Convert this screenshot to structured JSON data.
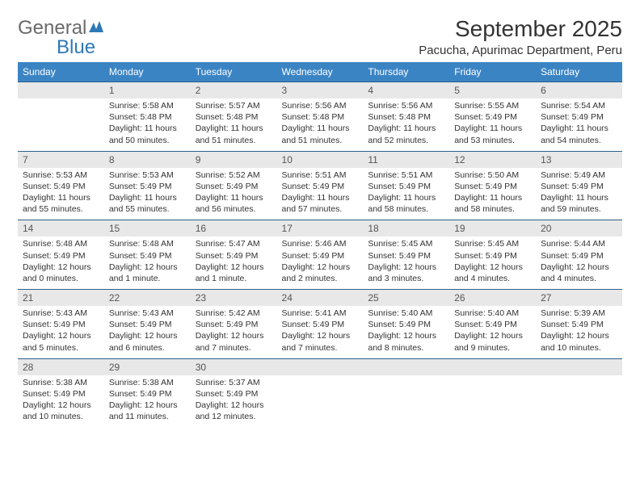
{
  "brand": {
    "text1": "General",
    "text2": "Blue",
    "icon_color": "#2e79b6"
  },
  "title": "September 2025",
  "location": "Pacucha, Apurimac Department, Peru",
  "colors": {
    "header_bg": "#3b84c4",
    "header_text": "#ffffff",
    "daynum_bg": "#e8e8e8",
    "cell_bg": "#ffffff",
    "border": "#2e5f8a"
  },
  "columns": [
    "Sunday",
    "Monday",
    "Tuesday",
    "Wednesday",
    "Thursday",
    "Friday",
    "Saturday"
  ],
  "weeks": [
    {
      "days": [
        {
          "num": "",
          "sunrise": "",
          "sunset": "",
          "daylight": ""
        },
        {
          "num": "1",
          "sunrise": "Sunrise: 5:58 AM",
          "sunset": "Sunset: 5:48 PM",
          "daylight": "Daylight: 11 hours and 50 minutes."
        },
        {
          "num": "2",
          "sunrise": "Sunrise: 5:57 AM",
          "sunset": "Sunset: 5:48 PM",
          "daylight": "Daylight: 11 hours and 51 minutes."
        },
        {
          "num": "3",
          "sunrise": "Sunrise: 5:56 AM",
          "sunset": "Sunset: 5:48 PM",
          "daylight": "Daylight: 11 hours and 51 minutes."
        },
        {
          "num": "4",
          "sunrise": "Sunrise: 5:56 AM",
          "sunset": "Sunset: 5:48 PM",
          "daylight": "Daylight: 11 hours and 52 minutes."
        },
        {
          "num": "5",
          "sunrise": "Sunrise: 5:55 AM",
          "sunset": "Sunset: 5:49 PM",
          "daylight": "Daylight: 11 hours and 53 minutes."
        },
        {
          "num": "6",
          "sunrise": "Sunrise: 5:54 AM",
          "sunset": "Sunset: 5:49 PM",
          "daylight": "Daylight: 11 hours and 54 minutes."
        }
      ]
    },
    {
      "days": [
        {
          "num": "7",
          "sunrise": "Sunrise: 5:53 AM",
          "sunset": "Sunset: 5:49 PM",
          "daylight": "Daylight: 11 hours and 55 minutes."
        },
        {
          "num": "8",
          "sunrise": "Sunrise: 5:53 AM",
          "sunset": "Sunset: 5:49 PM",
          "daylight": "Daylight: 11 hours and 55 minutes."
        },
        {
          "num": "9",
          "sunrise": "Sunrise: 5:52 AM",
          "sunset": "Sunset: 5:49 PM",
          "daylight": "Daylight: 11 hours and 56 minutes."
        },
        {
          "num": "10",
          "sunrise": "Sunrise: 5:51 AM",
          "sunset": "Sunset: 5:49 PM",
          "daylight": "Daylight: 11 hours and 57 minutes."
        },
        {
          "num": "11",
          "sunrise": "Sunrise: 5:51 AM",
          "sunset": "Sunset: 5:49 PM",
          "daylight": "Daylight: 11 hours and 58 minutes."
        },
        {
          "num": "12",
          "sunrise": "Sunrise: 5:50 AM",
          "sunset": "Sunset: 5:49 PM",
          "daylight": "Daylight: 11 hours and 58 minutes."
        },
        {
          "num": "13",
          "sunrise": "Sunrise: 5:49 AM",
          "sunset": "Sunset: 5:49 PM",
          "daylight": "Daylight: 11 hours and 59 minutes."
        }
      ]
    },
    {
      "days": [
        {
          "num": "14",
          "sunrise": "Sunrise: 5:48 AM",
          "sunset": "Sunset: 5:49 PM",
          "daylight": "Daylight: 12 hours and 0 minutes."
        },
        {
          "num": "15",
          "sunrise": "Sunrise: 5:48 AM",
          "sunset": "Sunset: 5:49 PM",
          "daylight": "Daylight: 12 hours and 1 minute."
        },
        {
          "num": "16",
          "sunrise": "Sunrise: 5:47 AM",
          "sunset": "Sunset: 5:49 PM",
          "daylight": "Daylight: 12 hours and 1 minute."
        },
        {
          "num": "17",
          "sunrise": "Sunrise: 5:46 AM",
          "sunset": "Sunset: 5:49 PM",
          "daylight": "Daylight: 12 hours and 2 minutes."
        },
        {
          "num": "18",
          "sunrise": "Sunrise: 5:45 AM",
          "sunset": "Sunset: 5:49 PM",
          "daylight": "Daylight: 12 hours and 3 minutes."
        },
        {
          "num": "19",
          "sunrise": "Sunrise: 5:45 AM",
          "sunset": "Sunset: 5:49 PM",
          "daylight": "Daylight: 12 hours and 4 minutes."
        },
        {
          "num": "20",
          "sunrise": "Sunrise: 5:44 AM",
          "sunset": "Sunset: 5:49 PM",
          "daylight": "Daylight: 12 hours and 4 minutes."
        }
      ]
    },
    {
      "days": [
        {
          "num": "21",
          "sunrise": "Sunrise: 5:43 AM",
          "sunset": "Sunset: 5:49 PM",
          "daylight": "Daylight: 12 hours and 5 minutes."
        },
        {
          "num": "22",
          "sunrise": "Sunrise: 5:43 AM",
          "sunset": "Sunset: 5:49 PM",
          "daylight": "Daylight: 12 hours and 6 minutes."
        },
        {
          "num": "23",
          "sunrise": "Sunrise: 5:42 AM",
          "sunset": "Sunset: 5:49 PM",
          "daylight": "Daylight: 12 hours and 7 minutes."
        },
        {
          "num": "24",
          "sunrise": "Sunrise: 5:41 AM",
          "sunset": "Sunset: 5:49 PM",
          "daylight": "Daylight: 12 hours and 7 minutes."
        },
        {
          "num": "25",
          "sunrise": "Sunrise: 5:40 AM",
          "sunset": "Sunset: 5:49 PM",
          "daylight": "Daylight: 12 hours and 8 minutes."
        },
        {
          "num": "26",
          "sunrise": "Sunrise: 5:40 AM",
          "sunset": "Sunset: 5:49 PM",
          "daylight": "Daylight: 12 hours and 9 minutes."
        },
        {
          "num": "27",
          "sunrise": "Sunrise: 5:39 AM",
          "sunset": "Sunset: 5:49 PM",
          "daylight": "Daylight: 12 hours and 10 minutes."
        }
      ]
    },
    {
      "days": [
        {
          "num": "28",
          "sunrise": "Sunrise: 5:38 AM",
          "sunset": "Sunset: 5:49 PM",
          "daylight": "Daylight: 12 hours and 10 minutes."
        },
        {
          "num": "29",
          "sunrise": "Sunrise: 5:38 AM",
          "sunset": "Sunset: 5:49 PM",
          "daylight": "Daylight: 12 hours and 11 minutes."
        },
        {
          "num": "30",
          "sunrise": "Sunrise: 5:37 AM",
          "sunset": "Sunset: 5:49 PM",
          "daylight": "Daylight: 12 hours and 12 minutes."
        },
        {
          "num": "",
          "sunrise": "",
          "sunset": "",
          "daylight": ""
        },
        {
          "num": "",
          "sunrise": "",
          "sunset": "",
          "daylight": ""
        },
        {
          "num": "",
          "sunrise": "",
          "sunset": "",
          "daylight": ""
        },
        {
          "num": "",
          "sunrise": "",
          "sunset": "",
          "daylight": ""
        }
      ]
    }
  ]
}
